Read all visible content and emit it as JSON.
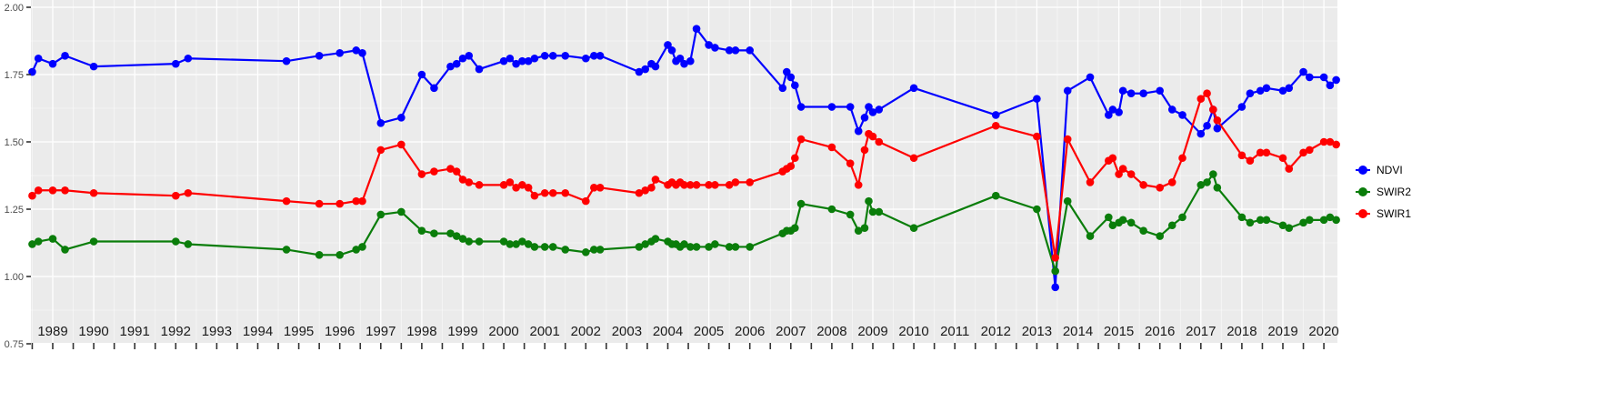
{
  "chart_data": {
    "type": "line",
    "title": "",
    "xlabel": "",
    "ylabel": "",
    "legend_position": "right",
    "grid": "white-major-minor-on-gray",
    "xlim": [
      1988.45,
      2020.45
    ],
    "ylim": [
      0.75,
      2.0
    ],
    "style": {
      "panel_background": "#EBEBEB",
      "grid_color": "#FFFFFF",
      "tick_color": "#333333",
      "x_label_color": "#1a1a1a",
      "y_label_color": "#4d4d4d"
    },
    "x_ticks": [
      1989,
      1990,
      1991,
      1992,
      1993,
      1994,
      1995,
      1996,
      1997,
      1998,
      1999,
      2000,
      2001,
      2002,
      2003,
      2004,
      2005,
      2006,
      2007,
      2008,
      2009,
      2010,
      2011,
      2012,
      2013,
      2014,
      2015,
      2016,
      2017,
      2018,
      2019,
      2020
    ],
    "y_ticks": [
      {
        "value": 2.0,
        "label": "2.00"
      },
      {
        "value": 1.75,
        "label": "1.75"
      },
      {
        "value": 1.5,
        "label": "1.50"
      },
      {
        "value": 1.25,
        "label": "1.25"
      },
      {
        "value": 1.0,
        "label": "1.00"
      },
      {
        "value": 0.75,
        "label": "0.75"
      }
    ],
    "x": [
      1988.5,
      1988.65,
      1989.0,
      1989.3,
      1990.0,
      1992.0,
      1992.3,
      1994.7,
      1995.5,
      1996.0,
      1996.4,
      1996.55,
      1997.0,
      1997.5,
      1998.0,
      1998.3,
      1998.7,
      1998.85,
      1999.0,
      1999.15,
      1999.4,
      2000.0,
      2000.15,
      2000.3,
      2000.45,
      2000.6,
      2000.75,
      2001.0,
      2001.2,
      2001.5,
      2002.0,
      2002.2,
      2002.35,
      2003.3,
      2003.45,
      2003.6,
      2003.7,
      2004.0,
      2004.1,
      2004.2,
      2004.3,
      2004.4,
      2004.55,
      2004.7,
      2005.0,
      2005.15,
      2005.5,
      2005.65,
      2006.0,
      2006.8,
      2006.9,
      2007.0,
      2007.1,
      2007.25,
      2008.0,
      2008.45,
      2008.65,
      2008.8,
      2008.9,
      2009.0,
      2009.15,
      2010.0,
      2012.0,
      2013.0,
      2013.45,
      2013.75,
      2014.3,
      2014.75,
      2014.85,
      2015.0,
      2015.1,
      2015.3,
      2015.6,
      2016.0,
      2016.3,
      2016.55,
      2017.0,
      2017.15,
      2017.3,
      2017.4,
      2018.0,
      2018.2,
      2018.45,
      2018.6,
      2019.0,
      2019.15,
      2019.5,
      2019.65,
      2020.0,
      2020.15,
      2020.3
    ],
    "series": [
      {
        "name": "NDVI",
        "color": "#0000FF",
        "values": [
          1.76,
          1.81,
          1.79,
          1.82,
          1.78,
          1.79,
          1.81,
          1.8,
          1.82,
          1.83,
          1.84,
          1.83,
          1.57,
          1.59,
          1.75,
          1.7,
          1.78,
          1.79,
          1.81,
          1.82,
          1.77,
          1.8,
          1.81,
          1.79,
          1.8,
          1.8,
          1.81,
          1.82,
          1.82,
          1.82,
          1.81,
          1.82,
          1.82,
          1.76,
          1.77,
          1.79,
          1.78,
          1.86,
          1.84,
          1.8,
          1.81,
          1.79,
          1.8,
          1.92,
          1.86,
          1.85,
          1.84,
          1.84,
          1.84,
          1.7,
          1.76,
          1.74,
          1.71,
          1.63,
          1.63,
          1.63,
          1.54,
          1.59,
          1.63,
          1.61,
          1.62,
          1.7,
          1.6,
          1.66,
          0.96,
          1.69,
          1.74,
          1.6,
          1.62,
          1.61,
          1.69,
          1.68,
          1.68,
          1.69,
          1.62,
          1.6,
          1.53,
          1.56,
          1.62,
          1.55,
          1.63,
          1.68,
          1.69,
          1.7,
          1.69,
          1.7,
          1.76,
          1.74,
          1.74,
          1.71,
          1.73
        ]
      },
      {
        "name": "SWIR2",
        "color": "#0A7D0A",
        "values": [
          1.12,
          1.13,
          1.14,
          1.1,
          1.13,
          1.13,
          1.12,
          1.1,
          1.08,
          1.08,
          1.1,
          1.11,
          1.23,
          1.24,
          1.17,
          1.16,
          1.16,
          1.15,
          1.14,
          1.13,
          1.13,
          1.13,
          1.12,
          1.12,
          1.13,
          1.12,
          1.11,
          1.11,
          1.11,
          1.1,
          1.09,
          1.1,
          1.1,
          1.11,
          1.12,
          1.13,
          1.14,
          1.13,
          1.12,
          1.12,
          1.11,
          1.12,
          1.11,
          1.11,
          1.11,
          1.12,
          1.11,
          1.11,
          1.11,
          1.16,
          1.17,
          1.17,
          1.18,
          1.27,
          1.25,
          1.23,
          1.17,
          1.18,
          1.28,
          1.24,
          1.24,
          1.18,
          1.3,
          1.25,
          1.02,
          1.28,
          1.15,
          1.22,
          1.19,
          1.2,
          1.21,
          1.2,
          1.17,
          1.15,
          1.19,
          1.22,
          1.34,
          1.35,
          1.38,
          1.33,
          1.22,
          1.2,
          1.21,
          1.21,
          1.19,
          1.18,
          1.2,
          1.21,
          1.21,
          1.22,
          1.21
        ]
      },
      {
        "name": "SWIR1",
        "color": "#FF0000",
        "values": [
          1.3,
          1.32,
          1.32,
          1.32,
          1.31,
          1.3,
          1.31,
          1.28,
          1.27,
          1.27,
          1.28,
          1.28,
          1.47,
          1.49,
          1.38,
          1.39,
          1.4,
          1.39,
          1.36,
          1.35,
          1.34,
          1.34,
          1.35,
          1.33,
          1.34,
          1.33,
          1.3,
          1.31,
          1.31,
          1.31,
          1.28,
          1.33,
          1.33,
          1.31,
          1.32,
          1.33,
          1.36,
          1.34,
          1.35,
          1.34,
          1.35,
          1.34,
          1.34,
          1.34,
          1.34,
          1.34,
          1.34,
          1.35,
          1.35,
          1.39,
          1.4,
          1.41,
          1.44,
          1.51,
          1.48,
          1.42,
          1.34,
          1.47,
          1.53,
          1.52,
          1.5,
          1.44,
          1.56,
          1.52,
          1.07,
          1.51,
          1.35,
          1.43,
          1.44,
          1.38,
          1.4,
          1.38,
          1.34,
          1.33,
          1.35,
          1.44,
          1.66,
          1.68,
          1.62,
          1.58,
          1.45,
          1.43,
          1.46,
          1.46,
          1.44,
          1.4,
          1.46,
          1.47,
          1.5,
          1.5,
          1.49
        ]
      }
    ]
  }
}
